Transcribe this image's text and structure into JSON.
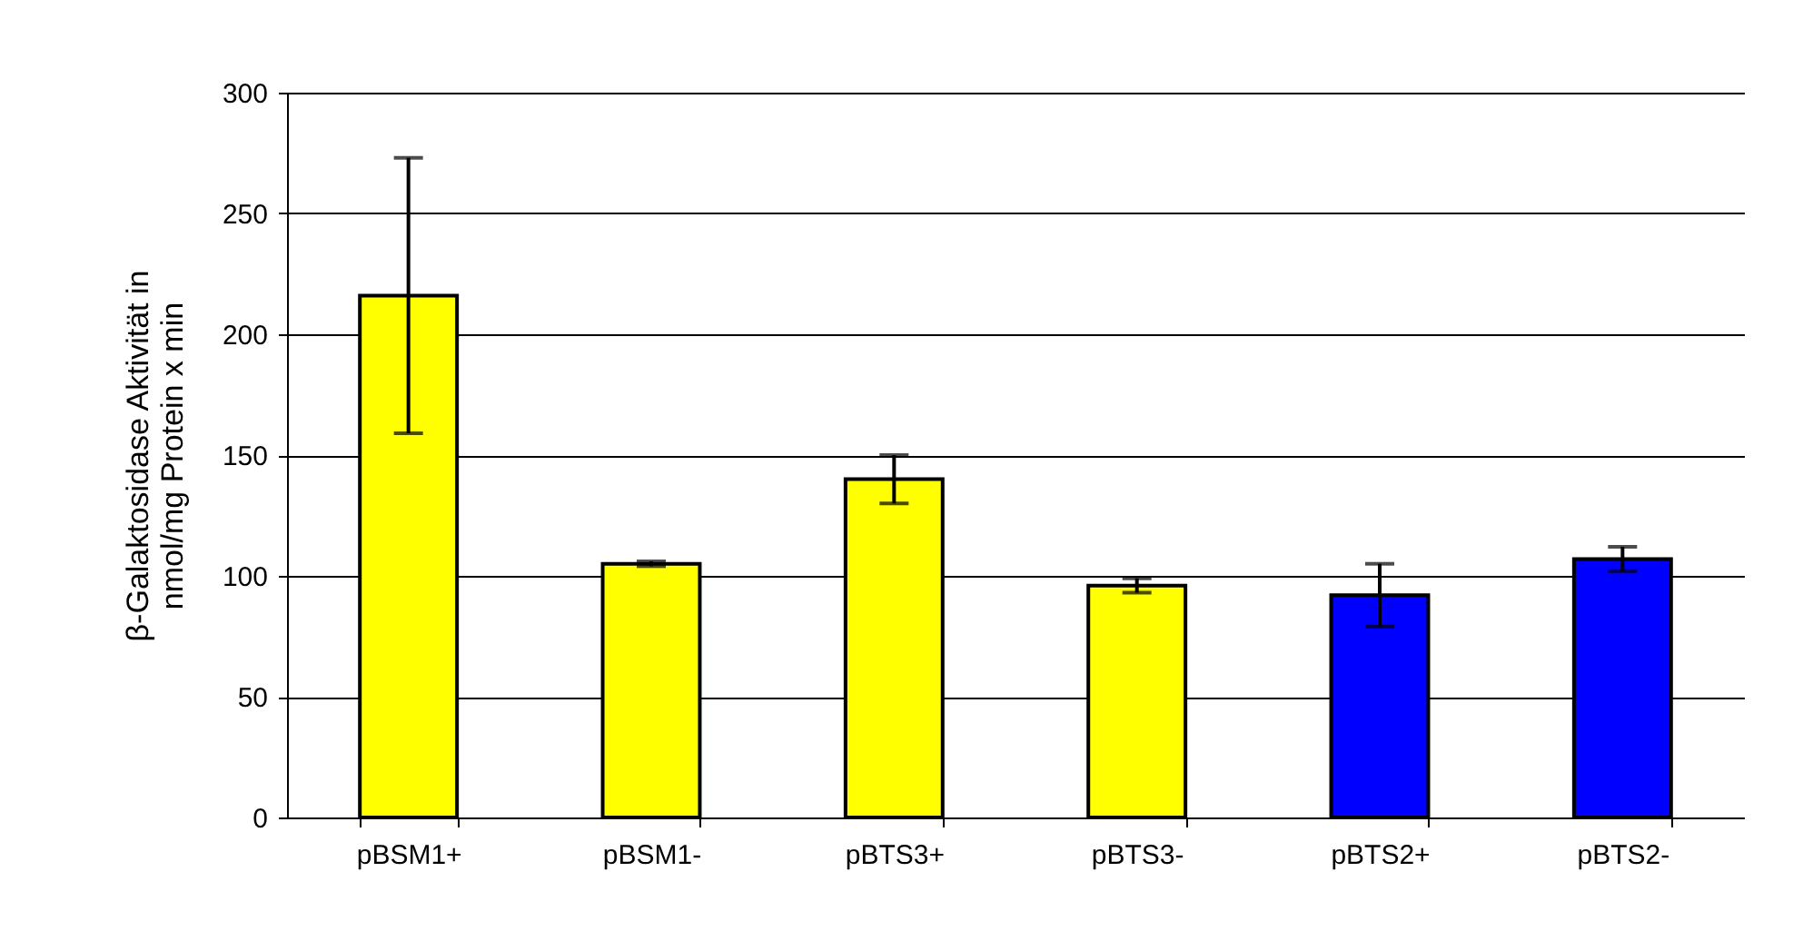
{
  "chart_data": {
    "type": "bar",
    "ylabel": "β-Galaktosidase Aktivität in\nnmol/mg Protein x min",
    "categories": [
      "pBSM1+",
      "pBSM1-",
      "pBTS3+",
      "pBTS3-",
      "pBTS2+",
      "pBTS2-"
    ],
    "values": [
      216,
      105,
      140,
      96,
      92,
      107
    ],
    "errors": [
      57,
      1,
      10,
      3,
      13,
      5
    ],
    "colors": [
      "#ffff00",
      "#ffff00",
      "#ffff00",
      "#ffff00",
      "#0000ff",
      "#0000ff"
    ],
    "ylim": [
      0,
      300
    ],
    "yticks": [
      0,
      50,
      100,
      150,
      200,
      250,
      300
    ],
    "grid": "y"
  }
}
